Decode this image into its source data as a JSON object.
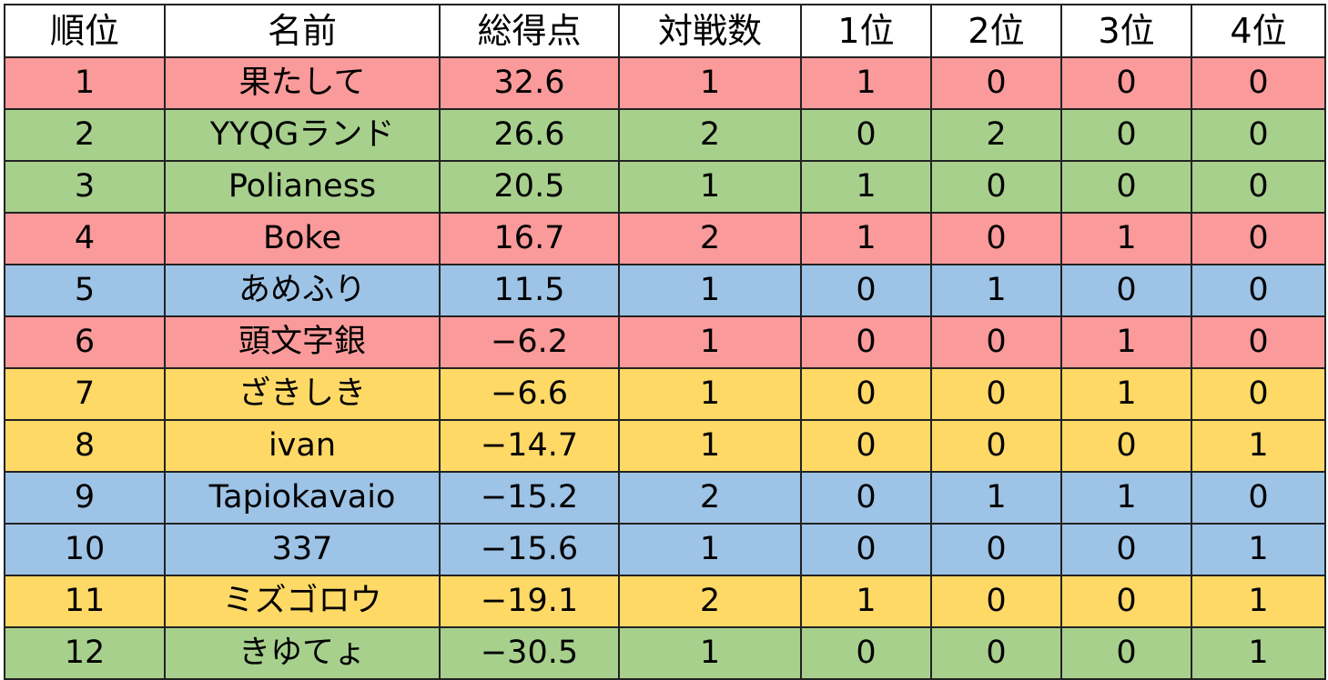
{
  "columns": {
    "rank": "順位",
    "name": "名前",
    "total_points": "総得点",
    "games": "対戦数",
    "place1": "1位",
    "place2": "2位",
    "place3": "3位",
    "place4": "4位"
  },
  "colors": {
    "red": "#fb9a9a",
    "green": "#a8d08d",
    "blue": "#9dc3e6",
    "yellow": "#ffd966"
  },
  "rows": [
    {
      "rank": "1",
      "name": "果たして",
      "total": "32.6",
      "games": "1",
      "p1": "1",
      "p2": "0",
      "p3": "0",
      "p4": "0",
      "color": "#fb9a9a"
    },
    {
      "rank": "2",
      "name": "YYQGランド",
      "total": "26.6",
      "games": "2",
      "p1": "0",
      "p2": "2",
      "p3": "0",
      "p4": "0",
      "color": "#a8d08d"
    },
    {
      "rank": "3",
      "name": "Polianess",
      "total": "20.5",
      "games": "1",
      "p1": "1",
      "p2": "0",
      "p3": "0",
      "p4": "0",
      "color": "#a8d08d"
    },
    {
      "rank": "4",
      "name": "Boke",
      "total": "16.7",
      "games": "2",
      "p1": "1",
      "p2": "0",
      "p3": "1",
      "p4": "0",
      "color": "#fb9a9a"
    },
    {
      "rank": "5",
      "name": "あめふり",
      "total": "11.5",
      "games": "1",
      "p1": "0",
      "p2": "1",
      "p3": "0",
      "p4": "0",
      "color": "#9dc3e6"
    },
    {
      "rank": "6",
      "name": "頭文字銀",
      "total": "−6.2",
      "games": "1",
      "p1": "0",
      "p2": "0",
      "p3": "1",
      "p4": "0",
      "color": "#fb9a9a"
    },
    {
      "rank": "7",
      "name": "ざきしき",
      "total": "−6.6",
      "games": "1",
      "p1": "0",
      "p2": "0",
      "p3": "1",
      "p4": "0",
      "color": "#ffd966"
    },
    {
      "rank": "8",
      "name": "ivan",
      "total": "−14.7",
      "games": "1",
      "p1": "0",
      "p2": "0",
      "p3": "0",
      "p4": "1",
      "color": "#ffd966"
    },
    {
      "rank": "9",
      "name": "Tapiokavaio",
      "total": "−15.2",
      "games": "2",
      "p1": "0",
      "p2": "1",
      "p3": "1",
      "p4": "0",
      "color": "#9dc3e6"
    },
    {
      "rank": "10",
      "name": "337",
      "total": "−15.6",
      "games": "1",
      "p1": "0",
      "p2": "0",
      "p3": "0",
      "p4": "1",
      "color": "#9dc3e6"
    },
    {
      "rank": "11",
      "name": "ミズゴロウ",
      "total": "−19.1",
      "games": "2",
      "p1": "1",
      "p2": "0",
      "p3": "0",
      "p4": "1",
      "color": "#ffd966"
    },
    {
      "rank": "12",
      "name": "きゆてょ",
      "total": "−30.5",
      "games": "1",
      "p1": "0",
      "p2": "0",
      "p3": "0",
      "p4": "1",
      "color": "#a8d08d"
    }
  ]
}
